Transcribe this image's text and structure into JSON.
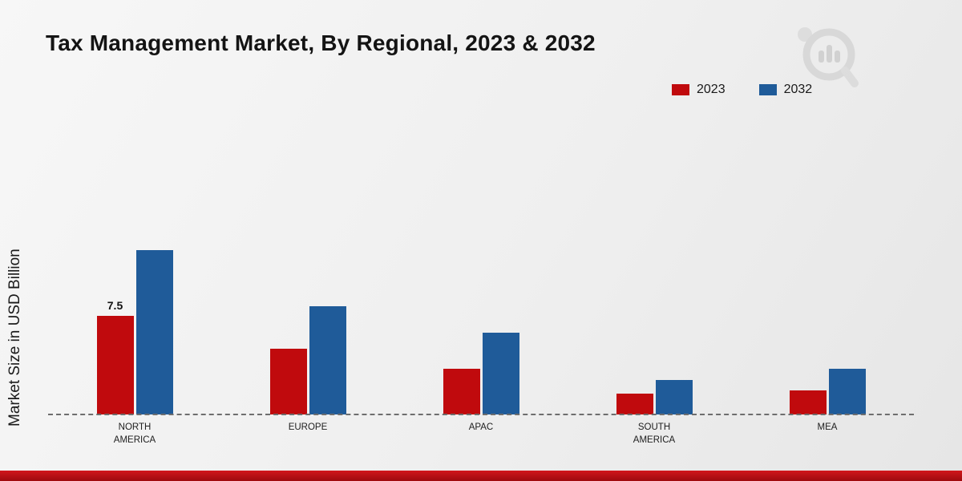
{
  "page": {
    "title": "Tax Management Market, By Regional, 2023 & 2032",
    "y_axis_label": "Market Size in USD Billion"
  },
  "legend": {
    "items": [
      {
        "label": "2023",
        "color": "#c00a0d"
      },
      {
        "label": "2032",
        "color": "#1f5b99"
      }
    ]
  },
  "chart_data": {
    "type": "bar",
    "title": "Tax Management Market, By Regional, 2023 & 2032",
    "xlabel": "",
    "ylabel": "Market Size in USD Billion",
    "categories": [
      "NORTH AMERICA",
      "EUROPE",
      "APAC",
      "SOUTH AMERICA",
      "MEA"
    ],
    "series": [
      {
        "name": "2023",
        "color": "#c00a0d",
        "values": [
          7.5,
          5.0,
          3.5,
          1.6,
          1.8
        ]
      },
      {
        "name": "2032",
        "color": "#1f5b99",
        "values": [
          12.5,
          8.2,
          6.2,
          2.6,
          3.5
        ]
      }
    ],
    "ylim": [
      0,
      14
    ],
    "grid": false,
    "legend_position": "top-right",
    "baseline_style": "dashed",
    "data_labels": [
      {
        "category": "NORTH AMERICA",
        "series": "2023",
        "value": "7.5"
      }
    ]
  },
  "branding": {
    "watermark_icon": "bar-chart-magnifier-logo",
    "footer_bar_color": "#b50d11"
  }
}
